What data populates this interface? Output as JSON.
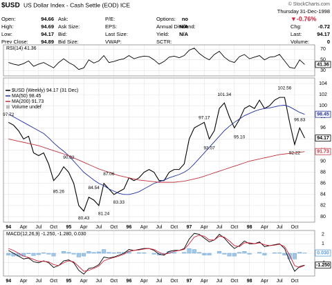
{
  "header": {
    "symbol": "$USD",
    "name": "US Dollar Index - Cash Settle (EOD) ICE",
    "credit": "© StockCharts.com"
  },
  "quote": {
    "fields": [
      [
        {
          "label": "Open:",
          "value": "94.66"
        },
        {
          "label": "High:",
          "value": "94.69"
        },
        {
          "label": "Low:",
          "value": "94.17"
        },
        {
          "label": "Prev Close:",
          "value": "94.89"
        }
      ],
      [
        {
          "label": "Ask:"
        },
        {
          "label": "Ask Size:"
        },
        {
          "label": "Bid:"
        },
        {
          "label": "Bid Size:"
        }
      ],
      [
        {
          "label": "P/E:"
        },
        {
          "label": "EPS:"
        },
        {
          "label": "Last Size:"
        },
        {
          "label": "VWAP:"
        }
      ],
      [
        {
          "label": "Options:",
          "value": "no"
        },
        {
          "label": "Annual Dividend:",
          "value": "N/A"
        },
        {
          "label": "Yield:",
          "value": "N/A"
        },
        {
          "label": "SCTR:"
        }
      ]
    ],
    "day": "Thursday",
    "date": "31-Dec-1998",
    "change_pct": "▼-0.76%",
    "summary": [
      {
        "label": "Chg:",
        "value": "-0.72"
      },
      {
        "label": "Last:",
        "value": "94.17"
      },
      {
        "label": "Volume:",
        "value": "0"
      }
    ]
  },
  "chart_data": [
    {
      "type": "line",
      "title": "RSI(14) 41.36",
      "x": [
        0,
        1,
        2,
        3,
        4,
        5,
        6,
        7,
        8,
        9,
        10,
        11,
        12,
        13,
        14,
        15,
        16,
        17,
        18,
        19,
        20,
        21,
        22,
        23,
        24,
        25,
        26,
        27,
        28,
        29,
        30,
        31,
        32,
        33,
        34,
        35,
        36,
        37,
        38,
        39,
        40,
        41,
        42,
        43,
        44,
        45,
        46,
        47,
        48,
        49,
        50,
        51,
        52,
        53,
        54,
        55,
        56,
        57,
        58,
        59
      ],
      "xlim": [
        -1,
        61
      ],
      "ylim": [
        20,
        78
      ],
      "yticks": [
        30,
        50,
        70
      ],
      "grid": true,
      "series": [
        {
          "color": "#000000",
          "last_label": "41.36",
          "values": [
            45,
            42,
            40,
            43,
            48,
            38,
            42,
            45,
            40,
            35,
            45,
            52,
            45,
            40,
            32,
            35,
            50,
            44,
            48,
            58,
            45,
            47,
            50,
            52,
            58,
            52,
            55,
            57,
            56,
            50,
            42,
            47,
            55,
            57,
            54,
            58,
            68,
            72,
            62,
            55,
            50,
            60,
            66,
            55,
            48,
            45,
            56,
            60,
            52,
            55,
            58,
            50,
            55,
            56,
            60,
            48,
            36,
            34,
            50,
            41.36
          ]
        }
      ]
    },
    {
      "type": "line",
      "x": [
        0,
        1,
        2,
        3,
        4,
        5,
        6,
        7,
        8,
        9,
        10,
        11,
        12,
        13,
        14,
        15,
        16,
        17,
        18,
        19,
        20,
        21,
        22,
        23,
        24,
        25,
        26,
        27,
        28,
        29,
        30,
        31,
        32,
        33,
        34,
        35,
        36,
        37,
        38,
        39,
        40,
        41,
        42,
        43,
        44,
        45,
        46,
        47,
        48,
        49,
        50,
        51,
        52,
        53,
        54,
        55,
        56,
        57,
        58,
        59
      ],
      "xlim": [
        -1,
        61
      ],
      "ylim": [
        79,
        105
      ],
      "yticks": [
        80,
        82,
        84,
        86,
        88,
        90,
        92,
        94,
        96,
        98,
        100,
        102,
        104
      ],
      "xticks": [
        {
          "value": 0,
          "label": "94"
        },
        {
          "value": 3,
          "label": "Apr"
        },
        {
          "value": 6,
          "label": "Jul"
        },
        {
          "value": 9,
          "label": "Oct"
        },
        {
          "value": 12,
          "label": "95"
        },
        {
          "value": 15,
          "label": "Apr"
        },
        {
          "value": 18,
          "label": "Jul"
        },
        {
          "value": 21,
          "label": "Oct"
        },
        {
          "value": 24,
          "label": "96"
        },
        {
          "value": 27,
          "label": "Apr"
        },
        {
          "value": 30,
          "label": "Jul"
        },
        {
          "value": 33,
          "label": "Oct"
        },
        {
          "value": 36,
          "label": "97"
        },
        {
          "value": 39,
          "label": "Apr"
        },
        {
          "value": 42,
          "label": "Jul"
        },
        {
          "value": 45,
          "label": "Oct"
        },
        {
          "value": 48,
          "label": "98"
        },
        {
          "value": 51,
          "label": "Apr"
        },
        {
          "value": 54,
          "label": "Jul"
        },
        {
          "value": 57,
          "label": "Oct"
        }
      ],
      "grid": true,
      "volume_label": "Volume undef",
      "series": [
        {
          "name": "$USD (Weekly) 94.17 (31 Dec)",
          "color": "#000000",
          "last_label": "94.17",
          "values": [
            97,
            96.5,
            95.5,
            94,
            94.5,
            91.5,
            91,
            91.5,
            89.5,
            86.5,
            87.5,
            89,
            88,
            86,
            82,
            81,
            83.5,
            83,
            82,
            86,
            85,
            84,
            84.5,
            85,
            87,
            86.5,
            87,
            88,
            88.5,
            88,
            86.5,
            86.5,
            88,
            88.5,
            88.5,
            89.5,
            94,
            96,
            96.5,
            97,
            94,
            95.5,
            99.5,
            100.5,
            98,
            96,
            97.5,
            99.5,
            100,
            99.5,
            101,
            99.5,
            100,
            101,
            101.5,
            101.5,
            97,
            93,
            96,
            94.17
          ]
        },
        {
          "name": "MA(50) 98.45",
          "color": "#1f2f9f",
          "last_label": "98.45",
          "values": [
            98.5,
            98,
            97.5,
            97,
            96.5,
            96,
            95.5,
            95,
            94.2,
            93.3,
            92.5,
            91.8,
            91,
            90,
            89,
            88,
            87.3,
            86.6,
            86,
            85.6,
            85,
            84.6,
            84.2,
            84,
            84,
            84.2,
            84.5,
            85,
            85.5,
            86,
            86.3,
            86.6,
            87,
            87.3,
            87.6,
            88,
            88.6,
            89.5,
            90.5,
            91.5,
            92.5,
            93.5,
            94.5,
            95.5,
            96.3,
            97,
            97.6,
            98.2,
            98.6,
            99,
            99.3,
            99.5,
            99.6,
            99.8,
            100,
            100.1,
            99.8,
            99.3,
            98.8,
            98.45
          ]
        },
        {
          "name": "MA(200) 91.73",
          "color": "#c0303c",
          "last_label": "91.73",
          "values": [
            94,
            93.8,
            93.6,
            93.4,
            93.2,
            93,
            92.8,
            92.5,
            92.2,
            91.9,
            91.6,
            91.3,
            91,
            90.6,
            90.2,
            89.8,
            89.4,
            89,
            88.6,
            88.3,
            88,
            87.7,
            87.4,
            87.2,
            87,
            86.8,
            86.6,
            86.5,
            86.4,
            86.3,
            86.2,
            86.2,
            86.2,
            86.2,
            86.3,
            86.4,
            86.6,
            86.8,
            87,
            87.3,
            87.6,
            87.9,
            88.2,
            88.5,
            88.8,
            89.1,
            89.4,
            89.7,
            90,
            90.2,
            90.4,
            90.6,
            90.8,
            91,
            91.2,
            91.3,
            91.4,
            91.5,
            91.6,
            91.73
          ]
        }
      ],
      "annotations": [
        {
          "x": 0,
          "y": 97.72,
          "label": "97.72"
        },
        {
          "x": 10,
          "y": 85.26,
          "label": "85.26"
        },
        {
          "x": 12,
          "y": 90.02,
          "label": "90.02"
        },
        {
          "x": 15,
          "y": 80.43,
          "label": "80.43"
        },
        {
          "x": 17,
          "y": 84.54,
          "label": "84.54"
        },
        {
          "x": 19,
          "y": 81.24,
          "label": "81.24"
        },
        {
          "x": 20,
          "y": 87.06,
          "label": "87.06"
        },
        {
          "x": 22,
          "y": 83.33,
          "label": "83.33"
        },
        {
          "x": 39,
          "y": 97.17,
          "label": "97.17"
        },
        {
          "x": 40,
          "y": 93.07,
          "label": "93.07"
        },
        {
          "x": 43,
          "y": 101.34,
          "label": "101.34"
        },
        {
          "x": 46,
          "y": 95.1,
          "label": "95.10"
        },
        {
          "x": 55,
          "y": 102.56,
          "label": "102.56"
        },
        {
          "x": 57,
          "y": 92.22,
          "label": "92.22"
        },
        {
          "x": 58,
          "y": 96.83,
          "label": "96.83"
        }
      ]
    },
    {
      "type": "line",
      "title": "MACD(12,26,9) -1.250, -1.280, 0.030",
      "x": [
        0,
        1,
        2,
        3,
        4,
        5,
        6,
        7,
        8,
        9,
        10,
        11,
        12,
        13,
        14,
        15,
        16,
        17,
        18,
        19,
        20,
        21,
        22,
        23,
        24,
        25,
        26,
        27,
        28,
        29,
        30,
        31,
        32,
        33,
        34,
        35,
        36,
        37,
        38,
        39,
        40,
        41,
        42,
        43,
        44,
        45,
        46,
        47,
        48,
        49,
        50,
        51,
        52,
        53,
        54,
        55,
        56,
        57,
        58,
        59
      ],
      "xlim": [
        -1,
        61
      ],
      "ylim": [
        -2.4,
        2.4
      ],
      "yticks": [
        -1,
        0,
        1,
        2
      ],
      "xticks": [
        {
          "value": 0,
          "label": "94"
        },
        {
          "value": 3,
          "label": "Apr"
        },
        {
          "value": 6,
          "label": "Jul"
        },
        {
          "value": 9,
          "label": "Oct"
        },
        {
          "value": 12,
          "label": "95"
        },
        {
          "value": 15,
          "label": "Apr"
        },
        {
          "value": 18,
          "label": "Jul"
        },
        {
          "value": 21,
          "label": "Oct"
        },
        {
          "value": 24,
          "label": "96"
        },
        {
          "value": 27,
          "label": "Apr"
        },
        {
          "value": 30,
          "label": "Jul"
        },
        {
          "value": 33,
          "label": "Oct"
        },
        {
          "value": 36,
          "label": "97"
        },
        {
          "value": 39,
          "label": "Apr"
        },
        {
          "value": 42,
          "label": "Jul"
        },
        {
          "value": 45,
          "label": "Oct"
        },
        {
          "value": 48,
          "label": "98"
        },
        {
          "value": 51,
          "label": "Apr"
        },
        {
          "value": 54,
          "label": "Jul"
        },
        {
          "value": 57,
          "label": "Oct"
        }
      ],
      "grid": true,
      "series": [
        {
          "type": "bar",
          "color": "#5a9bd5",
          "last_label": "0.030",
          "values": [
            -0.2,
            -0.3,
            -0.3,
            -0.3,
            -0.05,
            -0.25,
            -0.15,
            0.05,
            -0.1,
            -0.3,
            0,
            0.2,
            0.1,
            -0.1,
            -0.4,
            -0.3,
            0.2,
            0.1,
            0.15,
            0.4,
            0.1,
            0.05,
            0.1,
            0.1,
            0.2,
            0,
            0.05,
            0.05,
            0,
            -0.1,
            -0.2,
            -0.1,
            0.2,
            0.1,
            0,
            0.1,
            0.5,
            0.4,
            0.1,
            -0.2,
            -0.2,
            0,
            0.2,
            -0.1,
            -0.3,
            -0.3,
            0.1,
            0.2,
            -0.1,
            0,
            0.1,
            -0.2,
            0,
            0.05,
            0.05,
            -0.2,
            -0.6,
            -0.6,
            0.1,
            0.03
          ]
        },
        {
          "color": "#000000",
          "last_label": "-1.250",
          "values": [
            0.3,
            0,
            -0.3,
            -0.6,
            -0.5,
            -0.9,
            -1,
            -0.8,
            -1,
            -1.5,
            -1.3,
            -0.8,
            -0.7,
            -1,
            -1.8,
            -2.2,
            -1.6,
            -1.5,
            -1.2,
            -0.4,
            -0.5,
            -0.4,
            -0.2,
            0,
            0.4,
            0.3,
            0.4,
            0.5,
            0.5,
            0.3,
            -0.1,
            -0.2,
            0.2,
            0.3,
            0.3,
            0.5,
            1.5,
            2.1,
            2,
            1.6,
            1.2,
            1.4,
            2,
            1.6,
            1,
            0.5,
            0.8,
            1.3,
            1,
            1,
            1.2,
            0.7,
            0.8,
            0.9,
            1,
            0.5,
            -0.8,
            -1.9,
            -1.4,
            -1.25
          ]
        },
        {
          "color": "#d0203a",
          "values": [
            0.5,
            0.3,
            0,
            -0.3,
            -0.45,
            -0.65,
            -0.85,
            -0.85,
            -0.9,
            -1.2,
            -1.3,
            -1,
            -0.8,
            -0.9,
            -1.4,
            -1.9,
            -1.8,
            -1.6,
            -1.35,
            -0.8,
            -0.6,
            -0.45,
            -0.3,
            -0.1,
            0.2,
            0.3,
            0.35,
            0.45,
            0.5,
            0.4,
            0.1,
            -0.1,
            0,
            0.2,
            0.3,
            0.4,
            1,
            1.7,
            1.9,
            1.8,
            1.4,
            1.4,
            1.8,
            1.7,
            1.3,
            0.8,
            0.7,
            1.1,
            1.1,
            1,
            1.1,
            0.9,
            0.8,
            0.85,
            0.95,
            0.7,
            -0.2,
            -1.3,
            -1.5,
            -1.28
          ]
        }
      ]
    }
  ]
}
